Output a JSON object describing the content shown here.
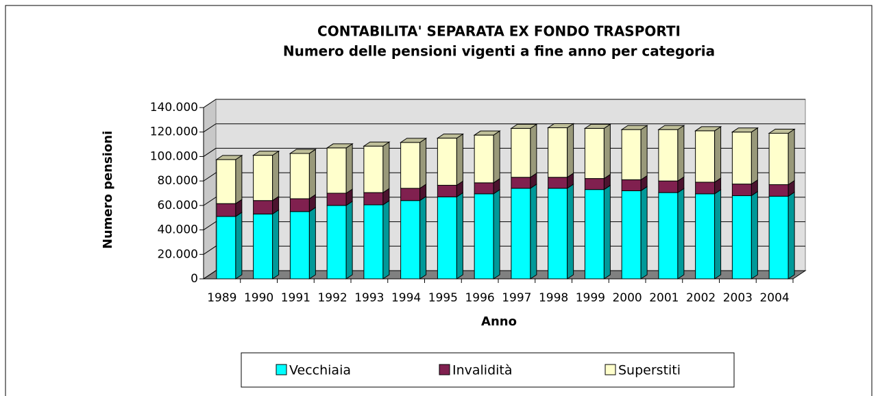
{
  "chart_data": {
    "type": "bar3d_stacked",
    "title": "CONTABILITA' SEPARATA EX FONDO TRASPORTI",
    "subtitle": "Numero delle pensioni vigenti a fine anno per categoria",
    "x_label": "Anno",
    "y_label": "Numero pensioni",
    "categories": [
      "1989",
      "1990",
      "1991",
      "1992",
      "1993",
      "1994",
      "1995",
      "1996",
      "1997",
      "1998",
      "1999",
      "2000",
      "2001",
      "2002",
      "2003",
      "2004"
    ],
    "series": [
      {
        "name": "Vecchiaia",
        "color": "#00ffff",
        "values": [
          51000,
          53000,
          55000,
          60000,
          60500,
          64000,
          67000,
          69500,
          74000,
          74000,
          73000,
          72000,
          70500,
          69500,
          68000,
          67500
        ]
      },
      {
        "name": "Invalidità",
        "color": "#80204f",
        "values": [
          10500,
          11000,
          10500,
          10000,
          10000,
          10000,
          9500,
          9000,
          9000,
          9000,
          9000,
          9000,
          9500,
          9500,
          9500,
          9500
        ]
      },
      {
        "name": "Superstiti",
        "color": "#ffffcc",
        "values": [
          36000,
          37000,
          37000,
          37000,
          38000,
          37500,
          38500,
          39000,
          40000,
          40500,
          41000,
          41000,
          42000,
          42000,
          42500,
          42000
        ]
      }
    ],
    "ylim": [
      0,
      140000
    ],
    "yticks": [
      0,
      {
        "value": 20000,
        "label": "20.000"
      },
      {
        "value": 40000,
        "label": "40.000"
      },
      {
        "value": 60000,
        "label": "60.000"
      },
      {
        "value": 80000,
        "label": "80.000"
      },
      {
        "value": 100000,
        "label": "100.000"
      },
      {
        "value": 120000,
        "label": "120.000"
      },
      {
        "value": 140000,
        "label": "140.000"
      }
    ],
    "grid": true,
    "stacked": true,
    "legend": "bottom"
  }
}
